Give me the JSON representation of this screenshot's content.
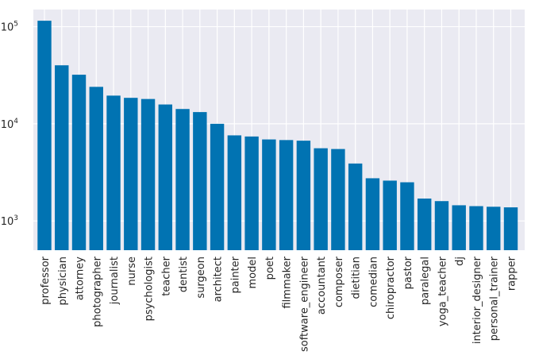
{
  "chart_data": {
    "type": "bar",
    "title": "",
    "xlabel": "",
    "ylabel": "",
    "y_scale": "log",
    "ylim": [
      500,
      150000
    ],
    "y_ticks": [
      {
        "value": 1000,
        "base": "10",
        "exp": "3"
      },
      {
        "value": 10000,
        "base": "10",
        "exp": "4"
      },
      {
        "value": 100000,
        "base": "10",
        "exp": "5"
      }
    ],
    "grid": true,
    "legend": "none",
    "colors": {
      "bar": "#0173b2",
      "plot_background": "#eaeaf2",
      "grid": "#ffffff",
      "text": "#262626"
    },
    "categories": [
      "professor",
      "physician",
      "attorney",
      "photographer",
      "journalist",
      "nurse",
      "psychologist",
      "teacher",
      "dentist",
      "surgeon",
      "architect",
      "painter",
      "model",
      "poet",
      "filmmaker",
      "software_engineer",
      "accountant",
      "composer",
      "dietitian",
      "comedian",
      "chiropractor",
      "pastor",
      "paralegal",
      "yoga_teacher",
      "dj",
      "interior_designer",
      "personal_trainer",
      "rapper"
    ],
    "values": [
      115000,
      40000,
      32000,
      24000,
      19500,
      18500,
      18000,
      15800,
      14200,
      13200,
      10000,
      7600,
      7400,
      6900,
      6800,
      6700,
      5600,
      5500,
      3900,
      2750,
      2600,
      2500,
      1700,
      1600,
      1450,
      1420,
      1400,
      1380
    ]
  }
}
